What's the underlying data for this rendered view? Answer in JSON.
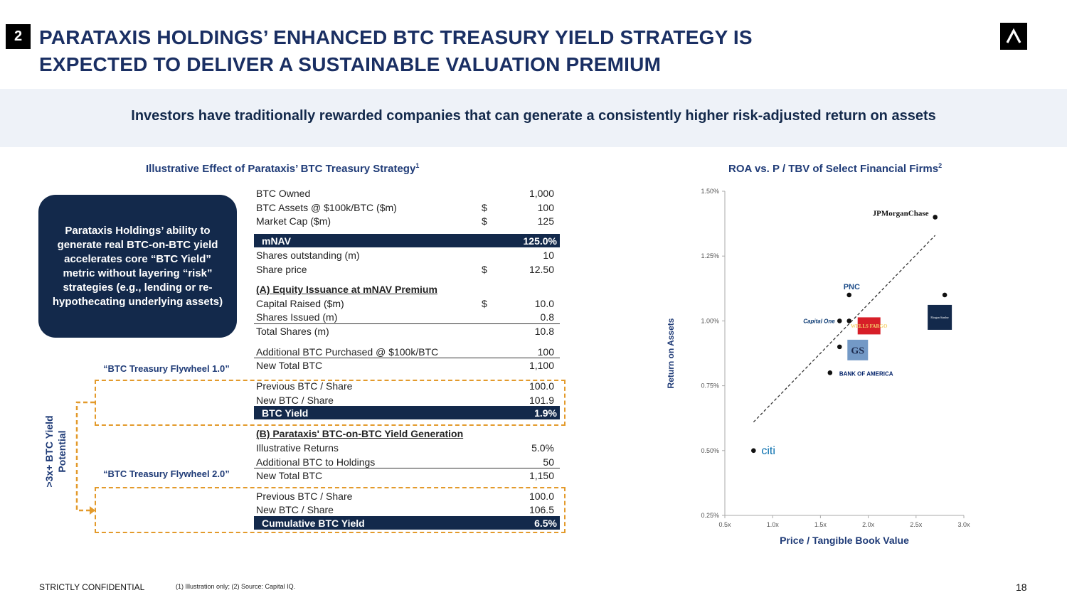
{
  "header": {
    "section_number": "2",
    "title_line1": "PARATAXIS HOLDINGS’ ENHANCED BTC TREASURY YIELD STRATEGY IS",
    "title_line2": "EXPECTED TO DELIVER A SUSTAINABLE VALUATION PREMIUM",
    "logo_icon": "caret-up-icon"
  },
  "banner": {
    "text": "Investors have traditionally rewarded companies that can generate a consistently higher risk-adjusted return on assets"
  },
  "left": {
    "title": "Illustrative Effect of Parataxis’ BTC Treasury Strategy",
    "title_sup": "1",
    "callout": "Parataxis Holdings’ ability to generate real BTC-on-BTC yield accelerates core “BTC Yield” metric without layering “risk” strategies (e.g., lending or re-hypothecating underlying assets)",
    "flywheel1": "“BTC Treasury Flywheel 1.0”",
    "flywheel2": "“BTC Treasury Flywheel 2.0”",
    "potential_line1": ">3x+ BTC Yield",
    "potential_line2": "Potential",
    "rows": [
      {
        "label": "BTC Owned",
        "cur": "",
        "value": "1,000"
      },
      {
        "label": "BTC Assets @ $100k/BTC ($m)",
        "cur": "$",
        "value": "100"
      },
      {
        "label": "Market Cap  ($m)",
        "cur": "$",
        "value": "125"
      },
      {
        "label": "mNAV",
        "cur": "",
        "value": "125.0%"
      },
      {
        "label": "Shares outstanding (m)",
        "cur": "",
        "value": "10"
      },
      {
        "label": "Share price",
        "cur": "$",
        "value": "12.50"
      },
      {
        "label": "(A) Equity Issuance at mNAV Premium",
        "cur": "",
        "value": ""
      },
      {
        "label": "Capital Raised ($m)",
        "cur": "$",
        "value": "10.0"
      },
      {
        "label": "Shares Issued (m)",
        "cur": "",
        "value": "0.8"
      },
      {
        "label": "Total Shares (m)",
        "cur": "",
        "value": "10.8"
      },
      {
        "label": "Additional BTC Purchased @ $100k/BTC",
        "cur": "",
        "value": "100"
      },
      {
        "label": "New Total BTC",
        "cur": "",
        "value": "1,100"
      },
      {
        "label": "Previous BTC / Share",
        "cur": "",
        "value": "100.0"
      },
      {
        "label": "New BTC / Share",
        "cur": "",
        "value": "101.9"
      },
      {
        "label": "BTC Yield",
        "cur": "",
        "value": "1.9%"
      },
      {
        "label": "(B) Parataxis' BTC-on-BTC Yield Generation",
        "cur": "",
        "value": ""
      },
      {
        "label": "Illustrative Returns",
        "cur": "",
        "value": "5.0%"
      },
      {
        "label": "Additional BTC to Holdings",
        "cur": "",
        "value": "50"
      },
      {
        "label": "New Total BTC",
        "cur": "",
        "value": "1,150"
      },
      {
        "label": "Previous BTC / Share",
        "cur": "",
        "value": "100.0"
      },
      {
        "label": "New BTC / Share",
        "cur": "",
        "value": "106.5"
      },
      {
        "label": "Cumulative BTC Yield",
        "cur": "",
        "value": "6.5%"
      }
    ]
  },
  "right": {
    "title": "ROA vs. P / TBV of Select Financial Firms",
    "title_sup": "2"
  },
  "chart_data": {
    "type": "scatter",
    "title": "ROA vs. P / TBV of Select Financial Firms",
    "xlabel": "Price / Tangible Book Value",
    "ylabel": "Return on Assets",
    "xlim": [
      0.5,
      3.0
    ],
    "ylim": [
      0.25,
      1.5
    ],
    "x_ticks": [
      "0.5x",
      "1.0x",
      "1.5x",
      "2.0x",
      "2.5x",
      "3.0x"
    ],
    "y_ticks": [
      "0.25%",
      "0.50%",
      "0.75%",
      "1.00%",
      "1.25%",
      "1.50%"
    ],
    "points": [
      {
        "name": "JPMorganChase",
        "x": 2.7,
        "y": 1.4,
        "label": "JPMorganChase"
      },
      {
        "name": "PNC",
        "x": 1.8,
        "y": 1.1,
        "label": "PNC"
      },
      {
        "name": "Morgan Stanley",
        "x": 2.8,
        "y": 1.1,
        "label": "Morgan Stanley"
      },
      {
        "name": "Capital One",
        "x": 1.7,
        "y": 1.0,
        "label": "Capital One"
      },
      {
        "name": "Wells Fargo",
        "x": 1.8,
        "y": 1.0,
        "label": "WELLS FARGO"
      },
      {
        "name": "Goldman Sachs",
        "x": 1.7,
        "y": 0.9,
        "label": "GS"
      },
      {
        "name": "Bank of America",
        "x": 1.6,
        "y": 0.8,
        "label": "BANK OF AMERICA"
      },
      {
        "name": "Citi",
        "x": 0.8,
        "y": 0.5,
        "label": "citi"
      }
    ],
    "trendline": {
      "x": [
        0.8,
        2.7
      ],
      "y": [
        0.61,
        1.33
      ]
    }
  },
  "footer": {
    "confidential": "STRICTLY CONFIDENTIAL",
    "note": "(1) Illustration only; (2) Source: Capital IQ.",
    "page_number": "18"
  }
}
